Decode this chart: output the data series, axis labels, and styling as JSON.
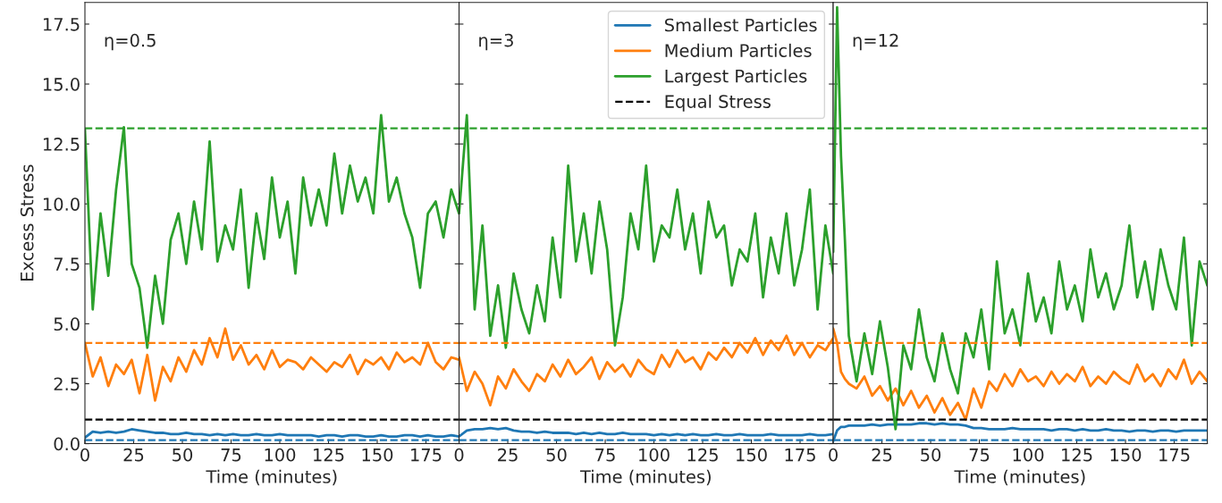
{
  "chart_data": [
    {
      "type": "line",
      "xlabel": "Time (minutes)",
      "ylabel": "Excess Stress",
      "annotations": [
        "η=0.5"
      ],
      "xlim": [
        0,
        192
      ],
      "xticks": [
        0,
        25,
        50,
        75,
        100,
        125,
        150,
        175
      ],
      "ylim": [
        0,
        18.4
      ],
      "yticks": [
        {
          "value": 0,
          "label": "0.0"
        },
        2.5,
        {
          "value": 5,
          "label": "5.0"
        },
        7.5,
        {
          "value": 10,
          "label": "10.0"
        },
        12.5,
        {
          "value": 15,
          "label": "15.0"
        },
        17.5
      ],
      "x": [
        0,
        4,
        8,
        12,
        16,
        20,
        24,
        28,
        32,
        36,
        40,
        44,
        48,
        52,
        56,
        60,
        64,
        68,
        72,
        76,
        80,
        84,
        88,
        92,
        96,
        100,
        104,
        108,
        112,
        116,
        120,
        124,
        128,
        132,
        136,
        140,
        144,
        148,
        152,
        156,
        160,
        164,
        168,
        172,
        176,
        180,
        184,
        188,
        192
      ],
      "series": [
        {
          "color": "#1f77b4",
          "values": [
            0.25,
            0.5,
            0.45,
            0.5,
            0.45,
            0.5,
            0.6,
            0.55,
            0.5,
            0.45,
            0.45,
            0.4,
            0.4,
            0.45,
            0.4,
            0.4,
            0.35,
            0.4,
            0.35,
            0.4,
            0.35,
            0.35,
            0.4,
            0.35,
            0.35,
            0.4,
            0.35,
            0.35,
            0.35,
            0.35,
            0.3,
            0.35,
            0.35,
            0.3,
            0.35,
            0.35,
            0.3,
            0.3,
            0.35,
            0.3,
            0.3,
            0.35,
            0.35,
            0.3,
            0.35,
            0.3,
            0.3,
            0.35,
            0.3
          ]
        },
        {
          "color": "#ff7f0e",
          "values": [
            4.2,
            2.8,
            3.6,
            2.4,
            3.3,
            2.9,
            3.5,
            2.1,
            3.7,
            1.8,
            3.2,
            2.6,
            3.6,
            3.0,
            3.9,
            3.3,
            4.4,
            3.6,
            4.8,
            3.5,
            4.1,
            3.3,
            3.7,
            3.1,
            3.9,
            3.2,
            3.5,
            3.4,
            3.1,
            3.6,
            3.3,
            3.0,
            3.4,
            3.2,
            3.7,
            2.9,
            3.5,
            3.3,
            3.6,
            3.1,
            3.8,
            3.4,
            3.6,
            3.3,
            4.2,
            3.4,
            3.1,
            3.6,
            3.5
          ]
        },
        {
          "color": "#2ca02c",
          "values": [
            13.1,
            5.6,
            9.6,
            7.0,
            10.6,
            13.2,
            7.5,
            6.5,
            4.0,
            7.0,
            5.0,
            8.5,
            9.6,
            7.5,
            10.1,
            8.1,
            12.6,
            7.6,
            9.1,
            8.1,
            10.6,
            6.5,
            9.6,
            7.7,
            11.1,
            8.6,
            10.1,
            7.1,
            11.1,
            9.1,
            10.6,
            9.1,
            12.1,
            9.6,
            11.6,
            10.1,
            11.1,
            9.6,
            13.7,
            10.1,
            11.1,
            9.6,
            8.6,
            6.5,
            9.6,
            10.1,
            8.6,
            10.6,
            9.6
          ]
        }
      ],
      "ref_lines": [
        {
          "axis": "y",
          "value": 13.15,
          "color": "#2ca02c",
          "line_style": "dashed"
        },
        {
          "axis": "y",
          "value": 4.2,
          "color": "#ff7f0e",
          "line_style": "dashed"
        },
        {
          "axis": "y",
          "value": 1.0,
          "color": "#000000",
          "line_style": "dashed"
        },
        {
          "axis": "y",
          "value": 0.15,
          "color": "#1f77b4",
          "line_style": "dashed"
        }
      ],
      "grid": false,
      "legend": false
    },
    {
      "type": "line",
      "xlabel": "Time (minutes)",
      "annotations": [
        "η=3"
      ],
      "tick_labels": "x",
      "xlim": [
        0,
        192
      ],
      "xticks": [
        0,
        25,
        50,
        75,
        100,
        125,
        150,
        175
      ],
      "ylim": [
        0,
        18.4
      ],
      "yticks": [
        0,
        2.5,
        5,
        7.5,
        10,
        12.5,
        15,
        17.5
      ],
      "x": [
        0,
        4,
        8,
        12,
        16,
        20,
        24,
        28,
        32,
        36,
        40,
        44,
        48,
        52,
        56,
        60,
        64,
        68,
        72,
        76,
        80,
        84,
        88,
        92,
        96,
        100,
        104,
        108,
        112,
        116,
        120,
        124,
        128,
        132,
        136,
        140,
        144,
        148,
        152,
        156,
        160,
        164,
        168,
        172,
        176,
        180,
        184,
        188,
        192
      ],
      "series": [
        {
          "name": "Smallest Particles",
          "color": "#1f77b4",
          "values": [
            0.3,
            0.55,
            0.6,
            0.6,
            0.65,
            0.6,
            0.65,
            0.55,
            0.5,
            0.5,
            0.45,
            0.5,
            0.45,
            0.45,
            0.45,
            0.4,
            0.45,
            0.4,
            0.45,
            0.4,
            0.4,
            0.45,
            0.4,
            0.4,
            0.4,
            0.35,
            0.4,
            0.35,
            0.4,
            0.35,
            0.4,
            0.35,
            0.35,
            0.4,
            0.35,
            0.35,
            0.4,
            0.35,
            0.35,
            0.35,
            0.4,
            0.35,
            0.35,
            0.35,
            0.35,
            0.4,
            0.35,
            0.35,
            0.4
          ]
        },
        {
          "name": "Medium Particles",
          "color": "#ff7f0e",
          "values": [
            3.6,
            2.2,
            3.0,
            2.5,
            1.6,
            2.8,
            2.3,
            3.1,
            2.6,
            2.2,
            2.9,
            2.6,
            3.3,
            2.8,
            3.5,
            2.9,
            3.2,
            3.6,
            2.7,
            3.4,
            3.0,
            3.3,
            2.8,
            3.5,
            3.1,
            2.9,
            3.7,
            3.2,
            3.9,
            3.4,
            3.6,
            3.1,
            3.8,
            3.5,
            4.0,
            3.6,
            4.2,
            3.8,
            4.4,
            3.7,
            4.3,
            3.9,
            4.5,
            3.7,
            4.2,
            3.6,
            4.1,
            3.9,
            4.4
          ]
        },
        {
          "name": "Largest Particles",
          "color": "#2ca02c",
          "values": [
            9.6,
            13.7,
            5.6,
            9.1,
            4.5,
            6.6,
            4.0,
            7.1,
            5.6,
            4.6,
            6.6,
            5.1,
            8.6,
            6.1,
            11.6,
            7.6,
            9.6,
            7.1,
            10.1,
            8.1,
            4.1,
            6.1,
            9.6,
            8.1,
            11.6,
            7.6,
            9.1,
            8.6,
            10.6,
            8.1,
            9.6,
            7.1,
            10.1,
            8.6,
            9.1,
            6.6,
            8.1,
            7.6,
            9.6,
            6.1,
            8.6,
            7.1,
            9.6,
            6.6,
            8.1,
            10.6,
            5.6,
            9.1,
            7.1
          ]
        }
      ],
      "ref_lines": [
        {
          "axis": "y",
          "value": 13.15,
          "color": "#2ca02c",
          "line_style": "dashed"
        },
        {
          "axis": "y",
          "value": 4.2,
          "color": "#ff7f0e",
          "line_style": "dashed"
        },
        {
          "axis": "y",
          "value": 1.0,
          "color": "#000000",
          "line_style": "dashed",
          "label": "Equal Stress"
        },
        {
          "axis": "y",
          "value": 0.15,
          "color": "#1f77b4",
          "line_style": "dashed"
        }
      ],
      "grid": false,
      "legend": "top right"
    },
    {
      "type": "line",
      "xlabel": "Time (minutes)",
      "annotations": [
        "η=12"
      ],
      "tick_labels": "x",
      "xlim": [
        0,
        192
      ],
      "xticks": [
        0,
        25,
        50,
        75,
        100,
        125,
        150,
        175
      ],
      "ylim": [
        0,
        18.4
      ],
      "yticks": [
        0,
        2.5,
        5,
        7.5,
        10,
        12.5,
        15,
        17.5
      ],
      "x": [
        0,
        2,
        4,
        6,
        8,
        12,
        16,
        20,
        24,
        28,
        32,
        36,
        40,
        44,
        48,
        52,
        56,
        60,
        64,
        68,
        72,
        76,
        80,
        84,
        88,
        92,
        96,
        100,
        104,
        108,
        112,
        116,
        120,
        124,
        128,
        132,
        136,
        140,
        144,
        148,
        152,
        156,
        160,
        164,
        168,
        172,
        176,
        180,
        184,
        188,
        192
      ],
      "series": [
        {
          "color": "#1f77b4",
          "values": [
            0.1,
            0.55,
            0.7,
            0.7,
            0.75,
            0.75,
            0.75,
            0.8,
            0.75,
            0.8,
            0.8,
            0.8,
            0.8,
            0.85,
            0.85,
            0.8,
            0.85,
            0.8,
            0.8,
            0.75,
            0.65,
            0.65,
            0.6,
            0.6,
            0.6,
            0.65,
            0.6,
            0.6,
            0.6,
            0.6,
            0.55,
            0.6,
            0.6,
            0.55,
            0.6,
            0.55,
            0.55,
            0.6,
            0.55,
            0.55,
            0.5,
            0.55,
            0.55,
            0.5,
            0.55,
            0.55,
            0.5,
            0.55,
            0.55,
            0.55,
            0.55
          ]
        },
        {
          "color": "#ff7f0e",
          "values": [
            4.8,
            4.2,
            3.0,
            2.7,
            2.5,
            2.3,
            2.8,
            2.0,
            2.4,
            1.8,
            2.3,
            1.6,
            2.2,
            1.5,
            2.0,
            1.3,
            1.9,
            1.2,
            1.7,
            1.0,
            2.3,
            1.5,
            2.6,
            2.2,
            2.9,
            2.4,
            3.1,
            2.6,
            2.8,
            2.4,
            3.0,
            2.5,
            2.9,
            2.6,
            3.2,
            2.4,
            2.8,
            2.5,
            3.0,
            2.7,
            2.5,
            3.3,
            2.6,
            2.9,
            2.4,
            3.1,
            2.7,
            3.5,
            2.5,
            3.0,
            2.6
          ]
        },
        {
          "color": "#2ca02c",
          "values": [
            8.0,
            18.2,
            12.0,
            8.5,
            4.5,
            2.6,
            4.6,
            2.9,
            5.1,
            3.2,
            0.6,
            4.1,
            3.1,
            5.6,
            3.6,
            2.6,
            4.6,
            3.1,
            2.1,
            4.6,
            3.6,
            5.6,
            3.1,
            7.6,
            4.6,
            5.6,
            4.1,
            7.1,
            5.1,
            6.1,
            4.6,
            7.6,
            5.6,
            6.6,
            5.1,
            8.1,
            6.1,
            7.1,
            5.6,
            6.6,
            9.1,
            6.1,
            7.6,
            5.6,
            8.1,
            6.6,
            5.6,
            8.6,
            4.1,
            7.6,
            6.6
          ]
        }
      ],
      "ref_lines": [
        {
          "axis": "y",
          "value": 13.15,
          "color": "#2ca02c",
          "line_style": "dashed"
        },
        {
          "axis": "y",
          "value": 4.2,
          "color": "#ff7f0e",
          "line_style": "dashed"
        },
        {
          "axis": "y",
          "value": 1.0,
          "color": "#000000",
          "line_style": "dashed"
        },
        {
          "axis": "y",
          "value": 0.15,
          "color": "#1f77b4",
          "line_style": "dashed"
        }
      ],
      "grid": false,
      "legend": false
    }
  ]
}
